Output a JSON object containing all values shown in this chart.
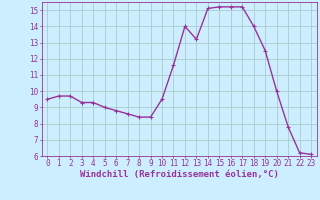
{
  "x": [
    0,
    1,
    2,
    3,
    4,
    5,
    6,
    7,
    8,
    9,
    10,
    11,
    12,
    13,
    14,
    15,
    16,
    17,
    18,
    19,
    20,
    21,
    22,
    23
  ],
  "y": [
    9.5,
    9.7,
    9.7,
    9.3,
    9.3,
    9.0,
    8.8,
    8.6,
    8.4,
    8.4,
    9.5,
    11.6,
    14.0,
    13.2,
    15.1,
    15.2,
    15.2,
    15.2,
    14.0,
    12.5,
    10.0,
    7.8,
    6.2,
    6.1
  ],
  "line_color": "#993399",
  "marker": "+",
  "bg_color": "#cceeff",
  "grid_color": "#aacccc",
  "xlabel": "Windchill (Refroidissement éolien,°C)",
  "ylim_min": 6,
  "ylim_max": 15.5,
  "xlim_min": -0.5,
  "xlim_max": 23.5,
  "yticks": [
    6,
    7,
    8,
    9,
    10,
    11,
    12,
    13,
    14,
    15
  ],
  "xticks": [
    0,
    1,
    2,
    3,
    4,
    5,
    6,
    7,
    8,
    9,
    10,
    11,
    12,
    13,
    14,
    15,
    16,
    17,
    18,
    19,
    20,
    21,
    22,
    23
  ],
  "tick_color": "#993399",
  "label_color": "#993399",
  "tick_fontsize": 5.5,
  "xlabel_fontsize": 6.5,
  "linewidth": 1.0,
  "markersize": 3.5,
  "markeredgewidth": 0.8
}
